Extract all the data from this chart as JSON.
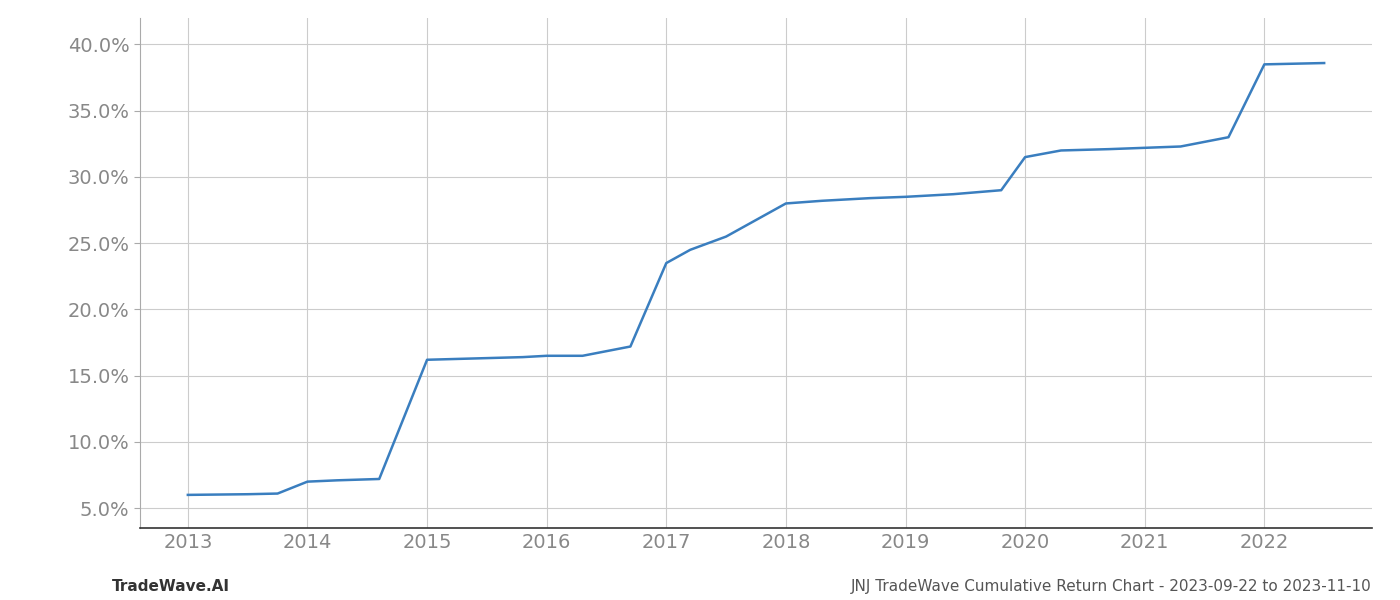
{
  "x_years": [
    2013.0,
    2013.5,
    2013.75,
    2014.0,
    2014.25,
    2014.6,
    2015.0,
    2015.4,
    2015.8,
    2016.0,
    2016.3,
    2016.7,
    2017.0,
    2017.2,
    2017.5,
    2017.8,
    2018.0,
    2018.3,
    2018.7,
    2019.0,
    2019.4,
    2019.8,
    2020.0,
    2020.3,
    2020.7,
    2021.0,
    2021.3,
    2021.7,
    2022.0,
    2022.5
  ],
  "y_values": [
    6.0,
    6.05,
    6.1,
    7.0,
    7.1,
    7.2,
    16.2,
    16.3,
    16.4,
    16.5,
    16.5,
    17.2,
    23.5,
    24.5,
    25.5,
    27.0,
    28.0,
    28.2,
    28.4,
    28.5,
    28.7,
    29.0,
    31.5,
    32.0,
    32.1,
    32.2,
    32.3,
    33.0,
    38.5,
    38.6
  ],
  "line_color": "#3a7ebf",
  "line_width": 1.8,
  "background_color": "#ffffff",
  "grid_color": "#cccccc",
  "footer_left": "TradeWave.AI",
  "footer_right": "JNJ TradeWave Cumulative Return Chart - 2023-09-22 to 2023-11-10",
  "xlim": [
    2012.6,
    2022.9
  ],
  "ylim": [
    3.5,
    42.0
  ],
  "yticks": [
    5.0,
    10.0,
    15.0,
    20.0,
    25.0,
    30.0,
    35.0,
    40.0
  ],
  "xticks": [
    2013,
    2014,
    2015,
    2016,
    2017,
    2018,
    2019,
    2020,
    2021,
    2022
  ],
  "tick_fontsize": 14,
  "footer_fontsize": 11,
  "fig_width": 14.0,
  "fig_height": 6.0
}
